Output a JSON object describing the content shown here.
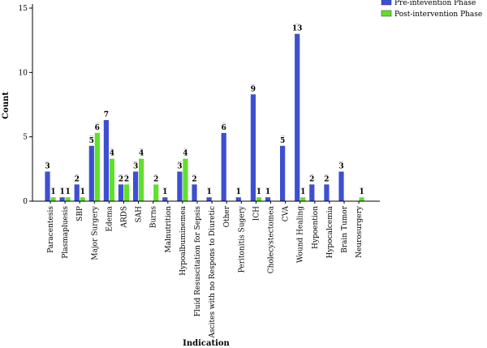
{
  "chart_data": {
    "type": "bar",
    "xlabel": "Indication",
    "ylabel": "Count",
    "ylim": [
      0,
      15
    ],
    "yticks": [
      0,
      5,
      10,
      15
    ],
    "grid": false,
    "legend_position": "top-right",
    "categories": [
      "Paracentesis",
      "Plasmapluesis",
      "SBP",
      "Major Surgery",
      "Edema",
      "ARDS",
      "SAH",
      "Burns",
      "Malnutrition",
      "Hypoalbuminemea",
      "Fluid Resuscitation for Sepsis",
      "Ascites with no Respons to Diuretic",
      "Other",
      "Peritonitis Sugery",
      "ICH",
      "Cholecystectomea",
      "CVA",
      "Wound Healing",
      "Hypoention",
      "Hypocalcemia",
      "Brain Tumor",
      "Neurosurgery"
    ],
    "series": [
      {
        "name": "Pre-intevention Phase",
        "color": "#3d4fd1",
        "values": [
          3,
          1,
          2,
          5,
          7,
          2,
          3,
          null,
          1,
          3,
          2,
          1,
          6,
          1,
          9,
          1,
          5,
          13,
          2,
          2,
          3,
          null
        ],
        "heights": [
          2.3,
          0.3,
          1.3,
          4.3,
          6.3,
          1.3,
          2.3,
          null,
          0.3,
          2.3,
          1.3,
          0.3,
          5.3,
          0.3,
          8.3,
          0.3,
          4.3,
          13.0,
          1.3,
          1.3,
          2.3,
          null
        ]
      },
      {
        "name": "Post-intervention Phase",
        "color": "#5fe02a",
        "values": [
          1,
          1,
          1,
          6,
          4,
          2,
          4,
          2,
          null,
          4,
          null,
          null,
          null,
          null,
          1,
          null,
          null,
          1,
          null,
          null,
          null,
          1
        ],
        "heights": [
          0.3,
          0.3,
          0.3,
          5.3,
          3.3,
          1.3,
          3.3,
          1.3,
          null,
          3.3,
          null,
          null,
          null,
          null,
          0.3,
          null,
          null,
          0.3,
          null,
          null,
          null,
          0.3
        ]
      }
    ]
  }
}
